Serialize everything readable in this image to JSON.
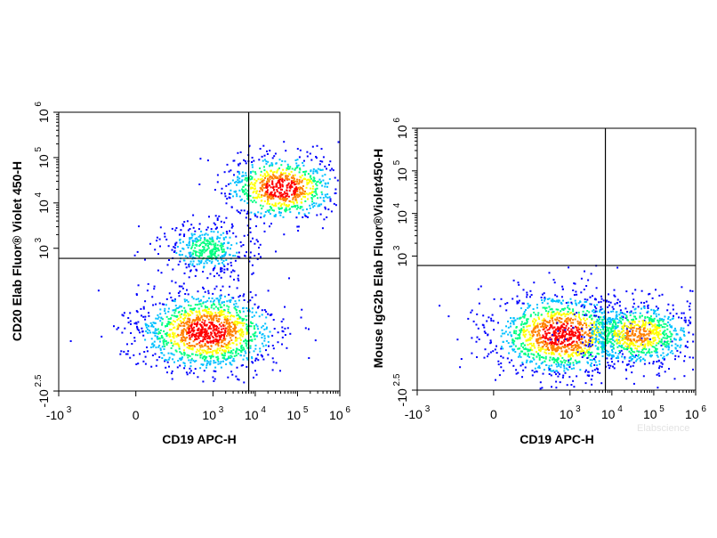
{
  "chart_data": [
    {
      "type": "scatter",
      "subtype": "flow-cytometry density dot plot",
      "xlabel": "CD19  APC-H",
      "ylabel": "CD20 Elab Fluor® Violet 450-H",
      "x_scale": "biexponential",
      "y_scale": "biexponential",
      "x_ticks": [
        {
          "value": -1000,
          "base": "-10",
          "exp": "3"
        },
        {
          "value": 0,
          "base": "0",
          "exp": ""
        },
        {
          "value": 1000,
          "base": "10",
          "exp": "3"
        },
        {
          "value": 10000,
          "base": "10",
          "exp": "4"
        },
        {
          "value": 100000,
          "base": "10",
          "exp": "5"
        },
        {
          "value": 1000000,
          "base": "10",
          "exp": "6"
        }
      ],
      "y_ticks": [
        {
          "value": -316,
          "base": "-10",
          "exp": "2.5"
        },
        {
          "value": 1000,
          "base": "10",
          "exp": "3"
        },
        {
          "value": 10000,
          "base": "10",
          "exp": "4"
        },
        {
          "value": 100000,
          "base": "10",
          "exp": "5"
        },
        {
          "value": 1000000,
          "base": "10",
          "exp": "6"
        }
      ],
      "xlim": [
        -1000,
        1000000
      ],
      "ylim": [
        -316,
        1000000
      ],
      "quadrant_gate": {
        "x": 7000,
        "y": 600
      },
      "populations": [
        {
          "label": "CD19- CD20- (bottom-left)",
          "x_center": 700,
          "y_center": 0,
          "relative_size": "large",
          "peak_density": "high"
        },
        {
          "label": "CD19+ CD20+ (top-right)",
          "x_center": 40000,
          "y_center": 22000,
          "relative_size": "medium",
          "peak_density": "high"
        },
        {
          "label": "CD20 dim (upper-left scatter)",
          "x_center": 700,
          "y_center": 1000,
          "relative_size": "small",
          "peak_density": "low"
        }
      ],
      "density_colors": [
        "#0000ff",
        "#00c0ff",
        "#00ff80",
        "#ffff00",
        "#ff8000",
        "#ff0000"
      ],
      "grid": false
    },
    {
      "type": "scatter",
      "subtype": "flow-cytometry density dot plot",
      "xlabel": "CD19 APC-H",
      "ylabel": "Mouse IgG2b Elab Fluor®Violet450-H",
      "x_scale": "biexponential",
      "y_scale": "biexponential",
      "x_ticks": [
        {
          "value": -1000,
          "base": "-10",
          "exp": "3"
        },
        {
          "value": 0,
          "base": "0",
          "exp": ""
        },
        {
          "value": 1000,
          "base": "10",
          "exp": "3"
        },
        {
          "value": 10000,
          "base": "10",
          "exp": "4"
        },
        {
          "value": 100000,
          "base": "10",
          "exp": "5"
        },
        {
          "value": 1000000,
          "base": "10",
          "exp": "6"
        }
      ],
      "y_ticks": [
        {
          "value": -316,
          "base": "-10",
          "exp": "2.5"
        },
        {
          "value": 1000,
          "base": "10",
          "exp": "3"
        },
        {
          "value": 10000,
          "base": "10",
          "exp": "4"
        },
        {
          "value": 100000,
          "base": "10",
          "exp": "5"
        },
        {
          "value": 1000000,
          "base": "10",
          "exp": "6"
        }
      ],
      "xlim": [
        -1000,
        1000000
      ],
      "ylim": [
        -316,
        1000000
      ],
      "quadrant_gate": {
        "x": 7000,
        "y": 600
      },
      "populations": [
        {
          "label": "CD19- (bottom-left)",
          "x_center": 600,
          "y_center": 0,
          "relative_size": "large",
          "peak_density": "high"
        },
        {
          "label": "CD19+ isotype (bottom-right)",
          "x_center": 40000,
          "y_center": 0,
          "relative_size": "medium",
          "peak_density": "medium"
        }
      ],
      "density_colors": [
        "#0000ff",
        "#00c0ff",
        "#00ff80",
        "#ffff00",
        "#ff8000",
        "#ff0000"
      ],
      "grid": false
    }
  ],
  "watermark": "Elabscience"
}
